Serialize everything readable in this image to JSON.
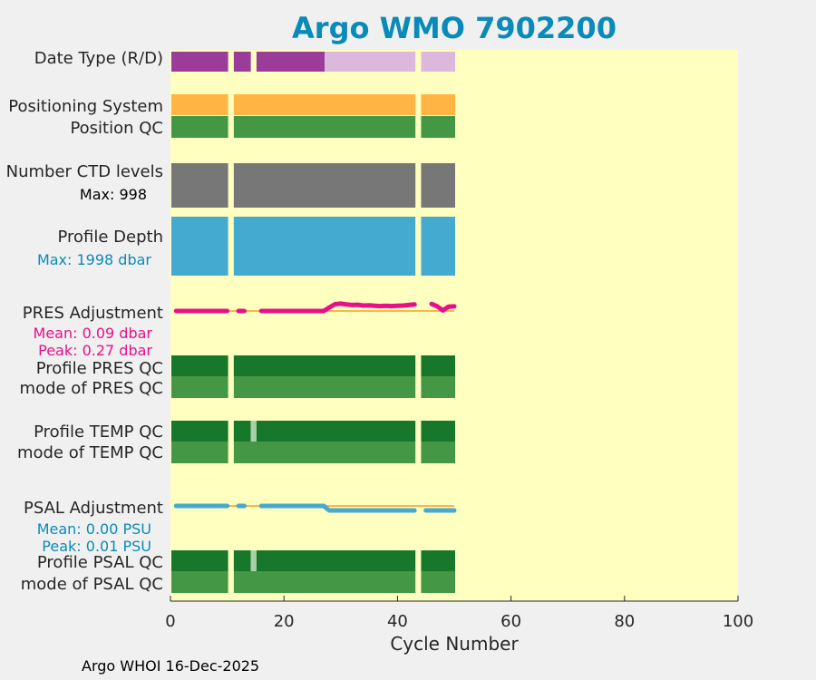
{
  "chart_data": {
    "type": "qc-timeline",
    "title": "Argo WMO 7902200",
    "xlabel": "Cycle Number",
    "xlim": [
      0,
      100
    ],
    "xticks": [
      0,
      20,
      40,
      60,
      80,
      100
    ],
    "footer": "Argo WHOI 16-Dec-2025",
    "colors": {
      "plot_background": "#ffffc0",
      "real_time": "#9b3c9a",
      "delayed": "#dcb8dc",
      "positioning": "#ffb444",
      "qc_good_dark": "#17772b",
      "qc_good": "#449845",
      "qc_probably_good": "#a9d0a9",
      "ctd_levels": "#777777",
      "depth": "#44aad0",
      "pres_adjustment": "#e8108a",
      "psal_adjustment": "#44aad0",
      "zero_line": "#ffb444",
      "info_blue": "#0a8ab8",
      "info_pink": "#e8108a"
    },
    "cycles_present": [
      {
        "from": 0,
        "to": 10
      },
      {
        "from": 12,
        "to": 43
      },
      {
        "from": 45,
        "to": 50
      }
    ],
    "rows": [
      {
        "label": "Date Type (R/D)",
        "type": "bars",
        "segments": [
          {
            "from": 0,
            "to": 10,
            "color": "real_time"
          },
          {
            "from": 11,
            "to": 14,
            "color": "real_time"
          },
          {
            "from": 15,
            "to": 27,
            "color": "real_time"
          },
          {
            "from": 27,
            "to": 43,
            "color": "delayed"
          },
          {
            "from": 44,
            "to": 50,
            "color": "delayed"
          }
        ]
      },
      {
        "label": "Positioning System",
        "type": "bars",
        "segments": [
          {
            "from": 0,
            "to": 10,
            "color": "positioning"
          },
          {
            "from": 11,
            "to": 43,
            "color": "positioning"
          },
          {
            "from": 44,
            "to": 50,
            "color": "positioning"
          }
        ]
      },
      {
        "label": "Position QC",
        "type": "bars",
        "segments": [
          {
            "from": 0,
            "to": 10,
            "color": "qc_good"
          },
          {
            "from": 11,
            "to": 43,
            "color": "qc_good"
          },
          {
            "from": 44,
            "to": 50,
            "color": "qc_good"
          }
        ]
      },
      {
        "label": "Number CTD levels",
        "type": "bars",
        "sublabel": "Max: 998",
        "segments": [
          {
            "from": 0,
            "to": 10,
            "color": "ctd_levels"
          },
          {
            "from": 11,
            "to": 43,
            "color": "ctd_levels"
          },
          {
            "from": 44,
            "to": 50,
            "color": "ctd_levels"
          }
        ]
      },
      {
        "label": "Profile Depth",
        "type": "bars",
        "sublabel": "Max: 1998 dbar",
        "segments": [
          {
            "from": 0,
            "to": 10,
            "color": "depth"
          },
          {
            "from": 11,
            "to": 43,
            "color": "depth"
          },
          {
            "from": 44,
            "to": 50,
            "color": "depth"
          }
        ]
      },
      {
        "label": "PRES Adjustment",
        "type": "line",
        "sublabel": "Mean: 0.09 dbar",
        "sublabel2": "Peak: 0.27 dbar",
        "units": "dbar",
        "color": "pres_adjustment",
        "points": [
          [
            1,
            0.0
          ],
          [
            2,
            0.0
          ],
          [
            3,
            0.0
          ],
          [
            4,
            0.0
          ],
          [
            5,
            0.0
          ],
          [
            6,
            0.0
          ],
          [
            7,
            0.0
          ],
          [
            8,
            0.0
          ],
          [
            9,
            0.0
          ],
          [
            10,
            0.0
          ],
          [
            12,
            0.0
          ],
          [
            13,
            0.0
          ],
          [
            16,
            0.0
          ],
          [
            17,
            0.0
          ],
          [
            18,
            0.0
          ],
          [
            19,
            0.0
          ],
          [
            20,
            0.0
          ],
          [
            21,
            0.0
          ],
          [
            22,
            0.0
          ],
          [
            23,
            0.0
          ],
          [
            24,
            0.0
          ],
          [
            25,
            0.0
          ],
          [
            26,
            0.0
          ],
          [
            27,
            0.0
          ],
          [
            28,
            0.13
          ],
          [
            29,
            0.25
          ],
          [
            30,
            0.27
          ],
          [
            31,
            0.24
          ],
          [
            32,
            0.22
          ],
          [
            33,
            0.23
          ],
          [
            34,
            0.2
          ],
          [
            35,
            0.21
          ],
          [
            36,
            0.19
          ],
          [
            37,
            0.18
          ],
          [
            38,
            0.19
          ],
          [
            39,
            0.18
          ],
          [
            40,
            0.19
          ],
          [
            41,
            0.2
          ],
          [
            42,
            0.22
          ],
          [
            43,
            0.24
          ],
          [
            46,
            0.26
          ],
          [
            47,
            0.17
          ],
          [
            48,
            0.02
          ],
          [
            49,
            0.16
          ],
          [
            50,
            0.17
          ]
        ]
      },
      {
        "label": "Profile PRES QC",
        "type": "bars",
        "segments": [
          {
            "from": 0,
            "to": 10,
            "color": "qc_good_dark"
          },
          {
            "from": 11,
            "to": 43,
            "color": "qc_good_dark"
          },
          {
            "from": 44,
            "to": 50,
            "color": "qc_good_dark"
          }
        ]
      },
      {
        "label": "mode of PRES QC",
        "type": "bars",
        "segments": [
          {
            "from": 0,
            "to": 10,
            "color": "qc_good"
          },
          {
            "from": 11,
            "to": 43,
            "color": "qc_good"
          },
          {
            "from": 44,
            "to": 50,
            "color": "qc_good"
          }
        ]
      },
      {
        "label": "Profile TEMP QC",
        "type": "bars",
        "segments": [
          {
            "from": 0,
            "to": 10,
            "color": "qc_good_dark"
          },
          {
            "from": 11,
            "to": 14,
            "color": "qc_good_dark"
          },
          {
            "from": 14,
            "to": 15,
            "color": "qc_probably_good"
          },
          {
            "from": 15,
            "to": 43,
            "color": "qc_good_dark"
          },
          {
            "from": 44,
            "to": 50,
            "color": "qc_good_dark"
          }
        ]
      },
      {
        "label": "mode of TEMP QC",
        "type": "bars",
        "segments": [
          {
            "from": 0,
            "to": 10,
            "color": "qc_good"
          },
          {
            "from": 11,
            "to": 43,
            "color": "qc_good"
          },
          {
            "from": 44,
            "to": 50,
            "color": "qc_good"
          }
        ]
      },
      {
        "label": "PSAL Adjustment",
        "type": "line",
        "sublabel": "Mean: 0.00 PSU",
        "sublabel2": "Peak: 0.01 PSU",
        "units": "PSU",
        "color": "psal_adjustment",
        "points": [
          [
            1,
            0.0
          ],
          [
            2,
            0.0
          ],
          [
            3,
            0.0
          ],
          [
            4,
            0.0
          ],
          [
            5,
            0.0
          ],
          [
            6,
            0.0
          ],
          [
            7,
            0.0
          ],
          [
            8,
            0.0
          ],
          [
            9,
            0.0
          ],
          [
            10,
            0.0
          ],
          [
            12,
            0.0
          ],
          [
            13,
            0.0
          ],
          [
            16,
            0.0
          ],
          [
            17,
            0.0
          ],
          [
            18,
            0.0
          ],
          [
            19,
            0.0
          ],
          [
            20,
            0.0
          ],
          [
            21,
            0.0
          ],
          [
            22,
            0.0
          ],
          [
            23,
            0.0
          ],
          [
            24,
            0.0
          ],
          [
            25,
            0.0
          ],
          [
            26,
            0.0
          ],
          [
            27,
            0.0
          ],
          [
            28,
            -0.01
          ],
          [
            29,
            -0.01
          ],
          [
            30,
            -0.01
          ],
          [
            31,
            -0.01
          ],
          [
            32,
            -0.01
          ],
          [
            33,
            -0.01
          ],
          [
            34,
            -0.01
          ],
          [
            35,
            -0.01
          ],
          [
            36,
            -0.01
          ],
          [
            37,
            -0.01
          ],
          [
            38,
            -0.01
          ],
          [
            39,
            -0.01
          ],
          [
            40,
            -0.01
          ],
          [
            41,
            -0.01
          ],
          [
            42,
            -0.01
          ],
          [
            43,
            -0.01
          ],
          [
            45,
            -0.01
          ],
          [
            46,
            -0.01
          ],
          [
            47,
            -0.01
          ],
          [
            48,
            -0.01
          ],
          [
            49,
            -0.01
          ],
          [
            50,
            -0.01
          ]
        ]
      },
      {
        "label": "Profile PSAL QC",
        "type": "bars",
        "segments": [
          {
            "from": 0,
            "to": 10,
            "color": "qc_good_dark"
          },
          {
            "from": 11,
            "to": 14,
            "color": "qc_good_dark"
          },
          {
            "from": 14,
            "to": 15,
            "color": "qc_probably_good"
          },
          {
            "from": 15,
            "to": 43,
            "color": "qc_good_dark"
          },
          {
            "from": 44,
            "to": 50,
            "color": "qc_good_dark"
          }
        ]
      },
      {
        "label": "mode of PSAL QC",
        "type": "bars",
        "segments": [
          {
            "from": 0,
            "to": 10,
            "color": "qc_good"
          },
          {
            "from": 11,
            "to": 43,
            "color": "qc_good"
          },
          {
            "from": 44,
            "to": 50,
            "color": "qc_good"
          }
        ]
      }
    ]
  }
}
